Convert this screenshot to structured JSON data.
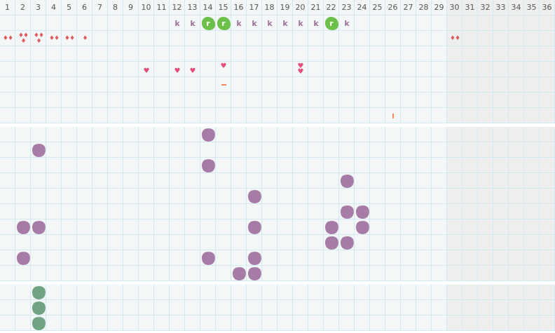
{
  "columns": [
    "1",
    "2",
    "3",
    "4",
    "5",
    "6",
    "7",
    "8",
    "9",
    "10",
    "11",
    "12",
    "13",
    "14",
    "15",
    "16",
    "17",
    "18",
    "19",
    "20",
    "21",
    "22",
    "23",
    "24",
    "25",
    "26",
    "27",
    "28",
    "29",
    "30",
    "31",
    "32",
    "33",
    "34",
    "35",
    "36"
  ],
  "shaded_from_column": "30",
  "sections": [
    {
      "rows": 7
    },
    {
      "rows": 10
    },
    {
      "rows": 3
    }
  ],
  "colors": {
    "purple_blob": "#a67ca6",
    "green_blob": "#6fa383",
    "r_badge": "#6cc04a",
    "k_letter": "#a0729a",
    "drop": "#e05a5a",
    "heart": "#e0507a",
    "orange": "#f08a5a"
  },
  "markers": [
    {
      "section": 0,
      "row": 0,
      "col": 12,
      "type": "k",
      "text": "k"
    },
    {
      "section": 0,
      "row": 0,
      "col": 13,
      "type": "k",
      "text": "k"
    },
    {
      "section": 0,
      "row": 0,
      "col": 14,
      "type": "r",
      "text": "r"
    },
    {
      "section": 0,
      "row": 0,
      "col": 15,
      "type": "r",
      "text": "r"
    },
    {
      "section": 0,
      "row": 0,
      "col": 16,
      "type": "k",
      "text": "k"
    },
    {
      "section": 0,
      "row": 0,
      "col": 17,
      "type": "k",
      "text": "k"
    },
    {
      "section": 0,
      "row": 0,
      "col": 18,
      "type": "k",
      "text": "k"
    },
    {
      "section": 0,
      "row": 0,
      "col": 19,
      "type": "k",
      "text": "k"
    },
    {
      "section": 0,
      "row": 0,
      "col": 20,
      "type": "k",
      "text": "k"
    },
    {
      "section": 0,
      "row": 0,
      "col": 21,
      "type": "k",
      "text": "k"
    },
    {
      "section": 0,
      "row": 0,
      "col": 22,
      "type": "r",
      "text": "r"
    },
    {
      "section": 0,
      "row": 0,
      "col": 23,
      "type": "k",
      "text": "k"
    },
    {
      "section": 0,
      "row": 1,
      "col": 1,
      "type": "drops",
      "count": 2
    },
    {
      "section": 0,
      "row": 1,
      "col": 2,
      "type": "drops",
      "count": 3
    },
    {
      "section": 0,
      "row": 1,
      "col": 3,
      "type": "drops",
      "count": 3
    },
    {
      "section": 0,
      "row": 1,
      "col": 4,
      "type": "drops",
      "count": 2
    },
    {
      "section": 0,
      "row": 1,
      "col": 5,
      "type": "drops",
      "count": 2
    },
    {
      "section": 0,
      "row": 1,
      "col": 6,
      "type": "drops",
      "count": 1
    },
    {
      "section": 0,
      "row": 1,
      "col": 30,
      "type": "drops",
      "count": 2
    },
    {
      "section": 0,
      "row": 3,
      "col": 10,
      "type": "heart",
      "count": 1
    },
    {
      "section": 0,
      "row": 3,
      "col": 12,
      "type": "heart",
      "count": 1
    },
    {
      "section": 0,
      "row": 3,
      "col": 13,
      "type": "heart",
      "count": 1
    },
    {
      "section": 0,
      "row": 3,
      "col": 15,
      "type": "heart",
      "count": 1,
      "high": true
    },
    {
      "section": 0,
      "row": 3,
      "col": 20,
      "type": "heart",
      "count": 2
    },
    {
      "section": 0,
      "row": 4,
      "col": 15,
      "type": "dash"
    },
    {
      "section": 0,
      "row": 6,
      "col": 26,
      "type": "tick"
    },
    {
      "section": 1,
      "row": 0,
      "col": 14,
      "type": "purple"
    },
    {
      "section": 1,
      "row": 1,
      "col": 3,
      "type": "purple"
    },
    {
      "section": 1,
      "row": 2,
      "col": 14,
      "type": "purple"
    },
    {
      "section": 1,
      "row": 3,
      "col": 23,
      "type": "purple"
    },
    {
      "section": 1,
      "row": 4,
      "col": 17,
      "type": "purple"
    },
    {
      "section": 1,
      "row": 5,
      "col": 23,
      "type": "purple"
    },
    {
      "section": 1,
      "row": 5,
      "col": 24,
      "type": "purple"
    },
    {
      "section": 1,
      "row": 6,
      "col": 2,
      "type": "purple"
    },
    {
      "section": 1,
      "row": 6,
      "col": 3,
      "type": "purple"
    },
    {
      "section": 1,
      "row": 6,
      "col": 17,
      "type": "purple"
    },
    {
      "section": 1,
      "row": 6,
      "col": 22,
      "type": "purple"
    },
    {
      "section": 1,
      "row": 6,
      "col": 24,
      "type": "purple"
    },
    {
      "section": 1,
      "row": 7,
      "col": 22,
      "type": "purple"
    },
    {
      "section": 1,
      "row": 7,
      "col": 23,
      "type": "purple"
    },
    {
      "section": 1,
      "row": 8,
      "col": 2,
      "type": "purple"
    },
    {
      "section": 1,
      "row": 8,
      "col": 14,
      "type": "purple"
    },
    {
      "section": 1,
      "row": 8,
      "col": 17,
      "type": "purple"
    },
    {
      "section": 1,
      "row": 9,
      "col": 16,
      "type": "purple"
    },
    {
      "section": 1,
      "row": 9,
      "col": 17,
      "type": "purple"
    },
    {
      "section": 2,
      "row": 0,
      "col": 3,
      "type": "green"
    },
    {
      "section": 2,
      "row": 1,
      "col": 3,
      "type": "green"
    },
    {
      "section": 2,
      "row": 2,
      "col": 3,
      "type": "green"
    }
  ]
}
